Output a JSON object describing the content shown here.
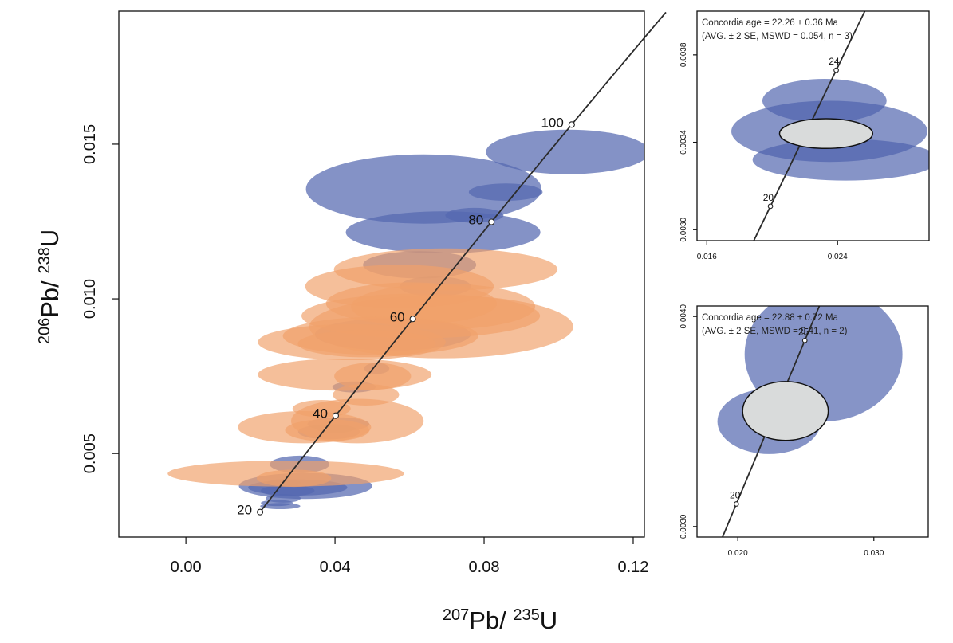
{
  "chart_data": [
    {
      "type": "scatter",
      "title": "",
      "xlabel": {
        "iso": "207",
        "el": "Pb/ ",
        "iso2": "235",
        "el2": "U"
      },
      "ylabel": {
        "iso": "206",
        "el": "Pb/ ",
        "iso2": "238",
        "el2": "U"
      },
      "xlim": [
        -0.018,
        0.123
      ],
      "ylim": [
        0.0023,
        0.0193
      ],
      "xticks": [
        0.0,
        0.04,
        0.08,
        0.12
      ],
      "xtick_labels": [
        "0.00",
        "0.04",
        "0.08",
        "0.12"
      ],
      "yticks": [
        0.005,
        0.01,
        0.015
      ],
      "ytick_labels": [
        "0.005",
        "0.010",
        "0.015"
      ],
      "concordia_ages": [
        20,
        40,
        60,
        80,
        100
      ],
      "concordia_labels": [
        "20",
        "40",
        "60",
        "80",
        "100"
      ],
      "series": [
        {
          "name": "blue",
          "color": "#5468b0",
          "ellipses": [
            {
              "x": 0.1024,
              "y": 0.01475,
              "rx": 0.0219,
              "ry": 0.00072
            },
            {
              "x": 0.0638,
              "y": 0.01355,
              "rx": 0.0316,
              "ry": 0.00112
            },
            {
              "x": 0.0858,
              "y": 0.01345,
              "rx": 0.0099,
              "ry": 0.00028
            },
            {
              "x": 0.069,
              "y": 0.01215,
              "rx": 0.0261,
              "ry": 0.00068
            },
            {
              "x": 0.0774,
              "y": 0.0127,
              "rx": 0.0078,
              "ry": 0.00024
            },
            {
              "x": 0.0627,
              "y": 0.0111,
              "rx": 0.0152,
              "ry": 0.00044
            },
            {
              "x": 0.0669,
              "y": 0.0104,
              "rx": 0.0096,
              "ry": 0.00032
            },
            {
              "x": 0.0555,
              "y": 0.00885,
              "rx": 0.0209,
              "ry": 0.00052
            },
            {
              "x": 0.0512,
              "y": 0.00775,
              "rx": 0.0034,
              "ry": 0.00018
            },
            {
              "x": 0.0451,
              "y": 0.00715,
              "rx": 0.0058,
              "ry": 0.00018
            },
            {
              "x": 0.0409,
              "y": 0.00595,
              "rx": 0.0083,
              "ry": 0.00022
            },
            {
              "x": 0.0384,
              "y": 0.0057,
              "rx": 0.0083,
              "ry": 0.00024
            },
            {
              "x": 0.0401,
              "y": 0.0058,
              "rx": 0.005,
              "ry": 0.00014
            },
            {
              "x": 0.0305,
              "y": 0.00465,
              "rx": 0.008,
              "ry": 0.00028
            },
            {
              "x": 0.0321,
              "y": 0.00395,
              "rx": 0.0179,
              "ry": 0.00042
            },
            {
              "x": 0.03,
              "y": 0.0039,
              "rx": 0.0133,
              "ry": 0.00026
            },
            {
              "x": 0.0273,
              "y": 0.0038,
              "rx": 0.0072,
              "ry": 0.00018
            },
            {
              "x": 0.0261,
              "y": 0.00355,
              "rx": 0.0047,
              "ry": 0.00014
            },
            {
              "x": 0.0244,
              "y": 0.0034,
              "rx": 0.0043,
              "ry": 0.0001
            },
            {
              "x": 0.0253,
              "y": 0.0033,
              "rx": 0.0054,
              "ry": 0.0001
            },
            {
              "x": 0.0263,
              "y": 0.00405,
              "rx": 0.0046,
              "ry": 0.00012
            }
          ]
        },
        {
          "name": "orange",
          "color": "#f0a16a",
          "ellipses": [
            {
              "x": 0.0697,
              "y": 0.01095,
              "rx": 0.03,
              "ry": 0.00068
            },
            {
              "x": 0.0573,
              "y": 0.0104,
              "rx": 0.0253,
              "ry": 0.0007
            },
            {
              "x": 0.069,
              "y": 0.00975,
              "rx": 0.0247,
              "ry": 0.00074
            },
            {
              "x": 0.0685,
              "y": 0.0091,
              "rx": 0.0354,
              "ry": 0.00102
            },
            {
              "x": 0.063,
              "y": 0.00945,
              "rx": 0.032,
              "ry": 0.00072
            },
            {
              "x": 0.0605,
              "y": 0.00985,
              "rx": 0.0229,
              "ry": 0.00068
            },
            {
              "x": 0.0522,
              "y": 0.0088,
              "rx": 0.0262,
              "ry": 0.00062
            },
            {
              "x": 0.0445,
              "y": 0.0086,
              "rx": 0.0252,
              "ry": 0.00058
            },
            {
              "x": 0.0485,
              "y": 0.00855,
              "rx": 0.0185,
              "ry": 0.00044
            },
            {
              "x": 0.0426,
              "y": 0.00755,
              "rx": 0.0233,
              "ry": 0.00052
            },
            {
              "x": 0.0501,
              "y": 0.0075,
              "rx": 0.0103,
              "ry": 0.00044
            },
            {
              "x": 0.0483,
              "y": 0.0069,
              "rx": 0.0089,
              "ry": 0.00035
            },
            {
              "x": 0.0364,
              "y": 0.00645,
              "rx": 0.0078,
              "ry": 0.00028
            },
            {
              "x": 0.046,
              "y": 0.00605,
              "rx": 0.0178,
              "ry": 0.00072
            },
            {
              "x": 0.0318,
              "y": 0.00585,
              "rx": 0.0179,
              "ry": 0.00052
            },
            {
              "x": 0.0379,
              "y": 0.00575,
              "rx": 0.0113,
              "ry": 0.00036
            },
            {
              "x": 0.0268,
              "y": 0.00435,
              "rx": 0.0317,
              "ry": 0.00042
            },
            {
              "x": 0.029,
              "y": 0.0042,
              "rx": 0.01,
              "ry": 0.00028
            }
          ]
        }
      ]
    },
    {
      "type": "scatter",
      "title": "Concordia age = 22.26 ± 0.36 Ma",
      "subtitle": "(AVG. ± 2 SE, MSWD = 0.054, n = 3)",
      "xlim": [
        0.0154,
        0.0296
      ],
      "ylim": [
        0.00295,
        0.004
      ],
      "xticks": [
        0.016,
        0.024
      ],
      "xtick_labels": [
        "0.016",
        "0.024"
      ],
      "yticks": [
        0.003,
        0.0034,
        0.0038
      ],
      "ytick_labels": [
        "0.0030",
        "0.0034",
        "0.0038"
      ],
      "concordia_ages": [
        20,
        24
      ],
      "concordia_labels": [
        "20",
        "24"
      ],
      "data_ellipses": [
        {
          "x": 0.0232,
          "y": 0.00359,
          "rx": 0.0038,
          "ry": 0.0001
        },
        {
          "x": 0.0235,
          "y": 0.00345,
          "rx": 0.006,
          "ry": 0.00014
        },
        {
          "x": 0.0245,
          "y": 0.00332,
          "rx": 0.0057,
          "ry": 9.5e-05
        }
      ],
      "concordia_age_ellipse": {
        "x": 0.0233,
        "y": 0.00344,
        "rx": 0.00285,
        "ry": 6.8e-05
      }
    },
    {
      "type": "scatter",
      "title": "Concordia age = 22.88 ± 0.72 Ma",
      "subtitle": "(AVG. ± 2 SE, MSWD = 0.41, n = 2)",
      "xlim": [
        0.017,
        0.034
      ],
      "ylim": [
        0.00295,
        0.00405
      ],
      "xticks": [
        0.02,
        0.03
      ],
      "xtick_labels": [
        "0.020",
        "0.030"
      ],
      "yticks": [
        0.003,
        0.004
      ],
      "ytick_labels": [
        "0.0030",
        "0.0040"
      ],
      "concordia_ages": [
        20,
        25
      ],
      "concordia_labels": [
        "20",
        "25"
      ],
      "data_ellipses": [
        {
          "x": 0.0263,
          "y": 0.00382,
          "rx": 0.0058,
          "ry": 0.00032
        },
        {
          "x": 0.0223,
          "y": 0.0035,
          "rx": 0.0038,
          "ry": 0.000155
        }
      ],
      "concordia_age_ellipse": {
        "x": 0.0235,
        "y": 0.00355,
        "rx": 0.00315,
        "ry": 0.00014
      }
    }
  ]
}
